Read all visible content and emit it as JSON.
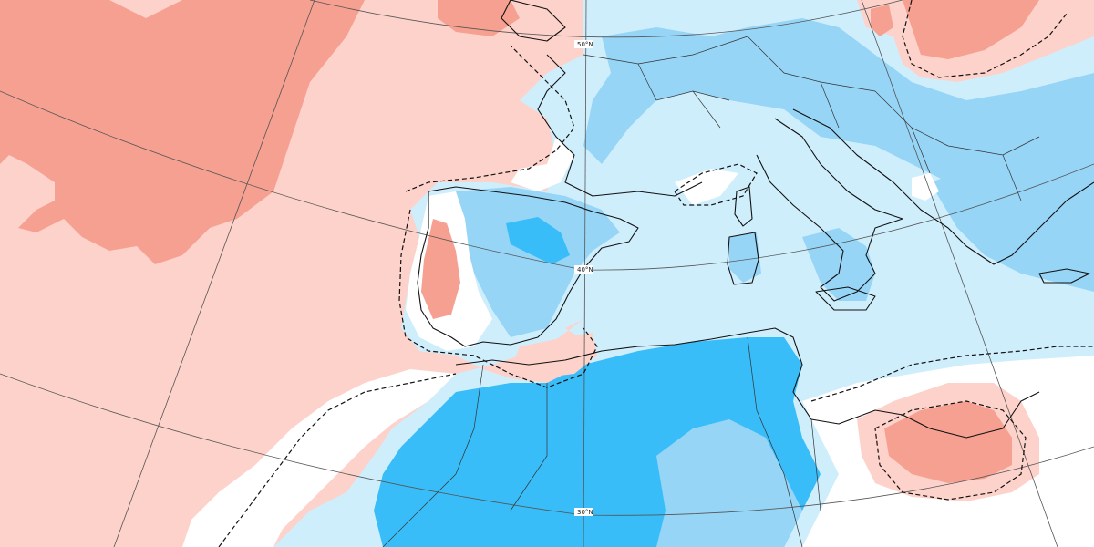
{
  "map": {
    "colors": {
      "strong_warm": "#f5a090",
      "warm": "#fdd2cb",
      "neutral": "#ffffff",
      "cool": "#cfeefc",
      "mid_cool": "#97d5f7",
      "strong_cool": "#38bdf8",
      "coast": "#111111",
      "grid": "#555555"
    },
    "latitude_labels": [
      {
        "text": "50°N"
      },
      {
        "text": "40°N"
      },
      {
        "text": "30°N"
      }
    ]
  }
}
